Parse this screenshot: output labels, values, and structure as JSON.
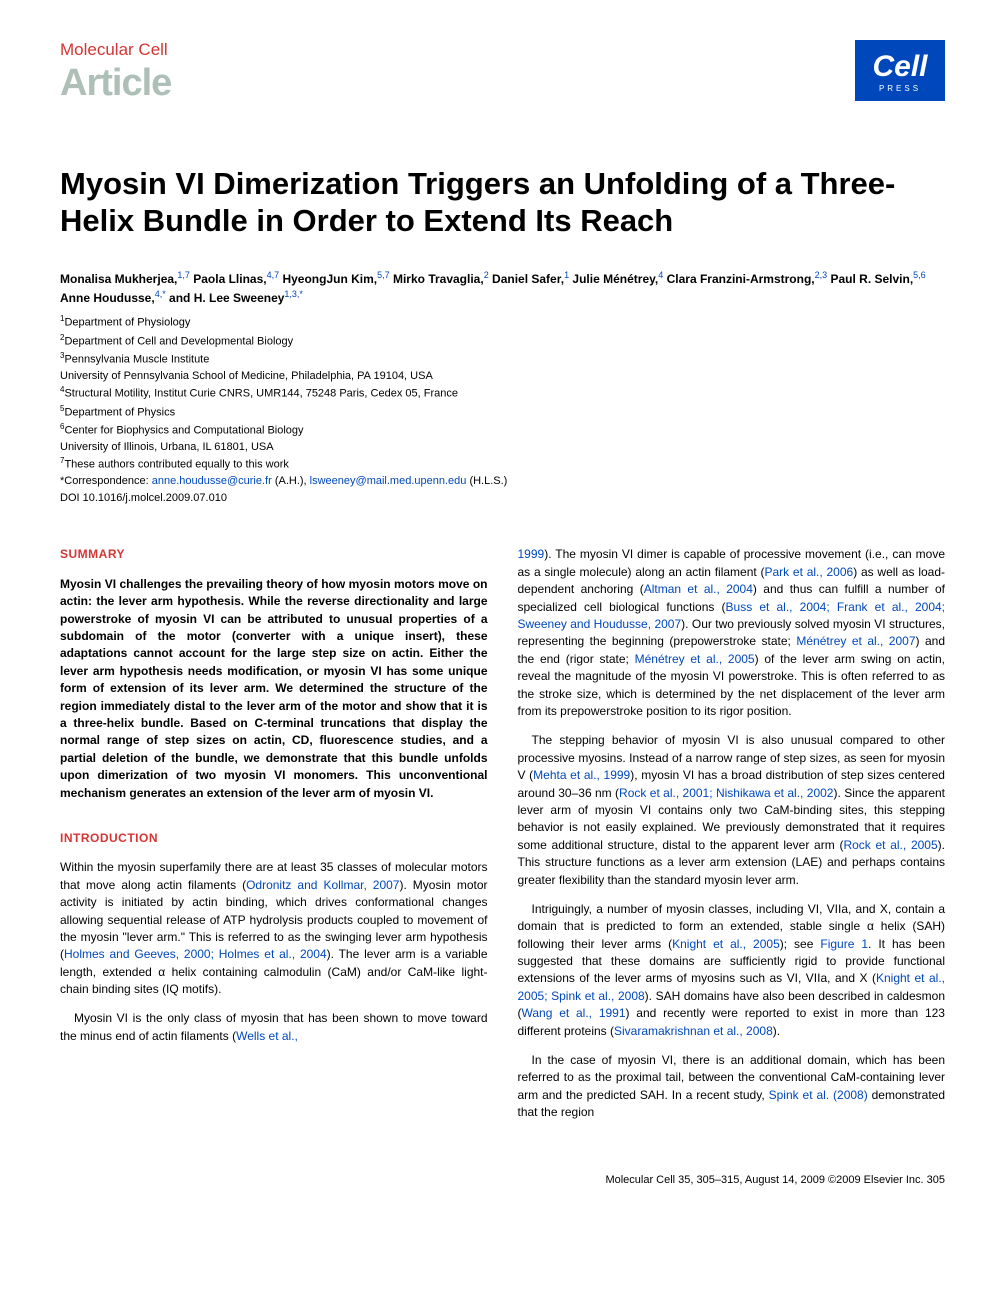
{
  "header": {
    "journal": "Molecular Cell",
    "article_label": "Article",
    "logo_text": "Cell",
    "logo_sub": "PRESS"
  },
  "title": "Myosin VI Dimerization Triggers an Unfolding of a Three-Helix Bundle in Order to Extend Its Reach",
  "authors_html": "Monalisa Mukherjea,<sup>1,7</sup> Paola Llinas,<sup>4,7</sup> HyeongJun Kim,<sup>5,7</sup> Mirko Travaglia,<sup>2</sup> Daniel Safer,<sup>1</sup> Julie Ménétrey,<sup>4</sup> Clara Franzini-Armstrong,<sup>2,3</sup> Paul R. Selvin,<sup>5,6</sup> Anne Houdusse,<sup>4,*</sup> and H. Lee Sweeney<sup>1,3,*</sup>",
  "affiliations": {
    "a1": "Department of Physiology",
    "a2": "Department of Cell and Developmental Biology",
    "a3": "Pennsylvania Muscle Institute",
    "univ1": "University of Pennsylvania School of Medicine, Philadelphia, PA 19104, USA",
    "a4": "Structural Motility, Institut Curie CNRS, UMR144, 75248 Paris, Cedex 05, France",
    "a5": "Department of Physics",
    "a6": "Center for Biophysics and Computational Biology",
    "univ2": "University of Illinois, Urbana, IL 61801, USA",
    "a7": "These authors contributed equally to this work",
    "corr_label": "*Correspondence:",
    "email1": "anne.houdusse@curie.fr",
    "corr1_suffix": "(A.H.),",
    "email2": "lsweeney@mail.med.upenn.edu",
    "corr2_suffix": "(H.L.S.)",
    "doi": "DOI 10.1016/j.molcel.2009.07.010"
  },
  "summary": {
    "heading": "SUMMARY",
    "text": "Myosin VI challenges the prevailing theory of how myosin motors move on actin: the lever arm hypothesis. While the reverse directionality and large powerstroke of myosin VI can be attributed to unusual properties of a subdomain of the motor (converter with a unique insert), these adaptations cannot account for the large step size on actin. Either the lever arm hypothesis needs modification, or myosin VI has some unique form of extension of its lever arm. We determined the structure of the region immediately distal to the lever arm of the motor and show that it is a three-helix bundle. Based on C-terminal truncations that display the normal range of step sizes on actin, CD, fluorescence studies, and a partial deletion of the bundle, we demonstrate that this bundle unfolds upon dimerization of two myosin VI monomers. This unconventional mechanism generates an extension of the lever arm of myosin VI."
  },
  "introduction": {
    "heading": "INTRODUCTION",
    "p1_pre": "Within the myosin superfamily there are at least 35 classes of molecular motors that move along actin filaments (",
    "p1_ref1": "Odronitz and Kollmar, 2007",
    "p1_mid1": "). Myosin motor activity is initiated by actin binding, which drives conformational changes allowing sequential release of ATP hydrolysis products coupled to movement of the myosin \"lever arm.\" This is referred to as the swinging lever arm hypothesis (",
    "p1_ref2": "Holmes and Geeves, 2000; Holmes et al., 2004",
    "p1_post": "). The lever arm is a variable length, extended α helix containing calmodulin (CaM) and/or CaM-like light-chain binding sites (IQ motifs).",
    "p2_pre": "Myosin VI is the only class of myosin that has been shown to move toward the minus end of actin filaments (",
    "p2_ref1": "Wells et al.,"
  },
  "col2": {
    "p1_ref1": "1999",
    "p1_a": "). The myosin VI dimer is capable of processive movement (i.e., can move as a single molecule) along an actin filament (",
    "p1_ref2": "Park et al., 2006",
    "p1_b": ") as well as load-dependent anchoring (",
    "p1_ref3": "Altman et al., 2004",
    "p1_c": ") and thus can fulfill a number of specialized cell biological functions (",
    "p1_ref4": "Buss et al., 2004; Frank et al., 2004; Sweeney and Houdusse, 2007",
    "p1_d": "). Our two previously solved myosin VI structures, representing the beginning (prepowerstroke state; ",
    "p1_ref5": "Ménétrey et al., 2007",
    "p1_e": ") and the end (rigor state; ",
    "p1_ref6": "Ménétrey et al., 2005",
    "p1_f": ") of the lever arm swing on actin, reveal the magnitude of the myosin VI powerstroke. This is often referred to as the stroke size, which is determined by the net displacement of the lever arm from its prepowerstroke position to its rigor position.",
    "p2_a": "The stepping behavior of myosin VI is also unusual compared to other processive myosins. Instead of a narrow range of step sizes, as seen for myosin V (",
    "p2_ref1": "Mehta et al., 1999",
    "p2_b": "), myosin VI has a broad distribution of step sizes centered around 30–36 nm (",
    "p2_ref2": "Rock et al., 2001; Nishikawa et al., 2002",
    "p2_c": "). Since the apparent lever arm of myosin VI contains only two CaM-binding sites, this stepping behavior is not easily explained. We previously demonstrated that it requires some additional structure, distal to the apparent lever arm (",
    "p2_ref3": "Rock et al., 2005",
    "p2_d": "). This structure functions as a lever arm extension (LAE) and perhaps contains greater flexibility than the standard myosin lever arm.",
    "p3_a": "Intriguingly, a number of myosin classes, including VI, VIIa, and X, contain a domain that is predicted to form an extended, stable single α helix (SAH) following their lever arms (",
    "p3_ref1": "Knight et al., 2005",
    "p3_b": "); see ",
    "p3_ref2": "Figure 1",
    "p3_c": ". It has been suggested that these domains are sufficiently rigid to provide functional extensions of the lever arms of myosins such as VI, VIIa, and X (",
    "p3_ref3": "Knight et al., 2005; Spink et al., 2008",
    "p3_d": "). SAH domains have also been described in caldesmon (",
    "p3_ref4": "Wang et al., 1991",
    "p3_e": ") and recently were reported to exist in more than 123 different proteins (",
    "p3_ref5": "Sivaramakrishnan et al., 2008",
    "p3_f": ").",
    "p4_a": "In the case of myosin VI, there is an additional domain, which has been referred to as the proximal tail, between the conventional CaM-containing lever arm and the predicted SAH. In a recent study, ",
    "p4_ref1": "Spink et al. (2008)",
    "p4_b": " demonstrated that the region"
  },
  "footer": {
    "text": "Molecular Cell 35, 305–315, August 14, 2009 ©2009 Elsevier Inc.  305"
  },
  "colors": {
    "red": "#d43535",
    "blue": "#0047bb",
    "gray": "#aebfb8"
  }
}
